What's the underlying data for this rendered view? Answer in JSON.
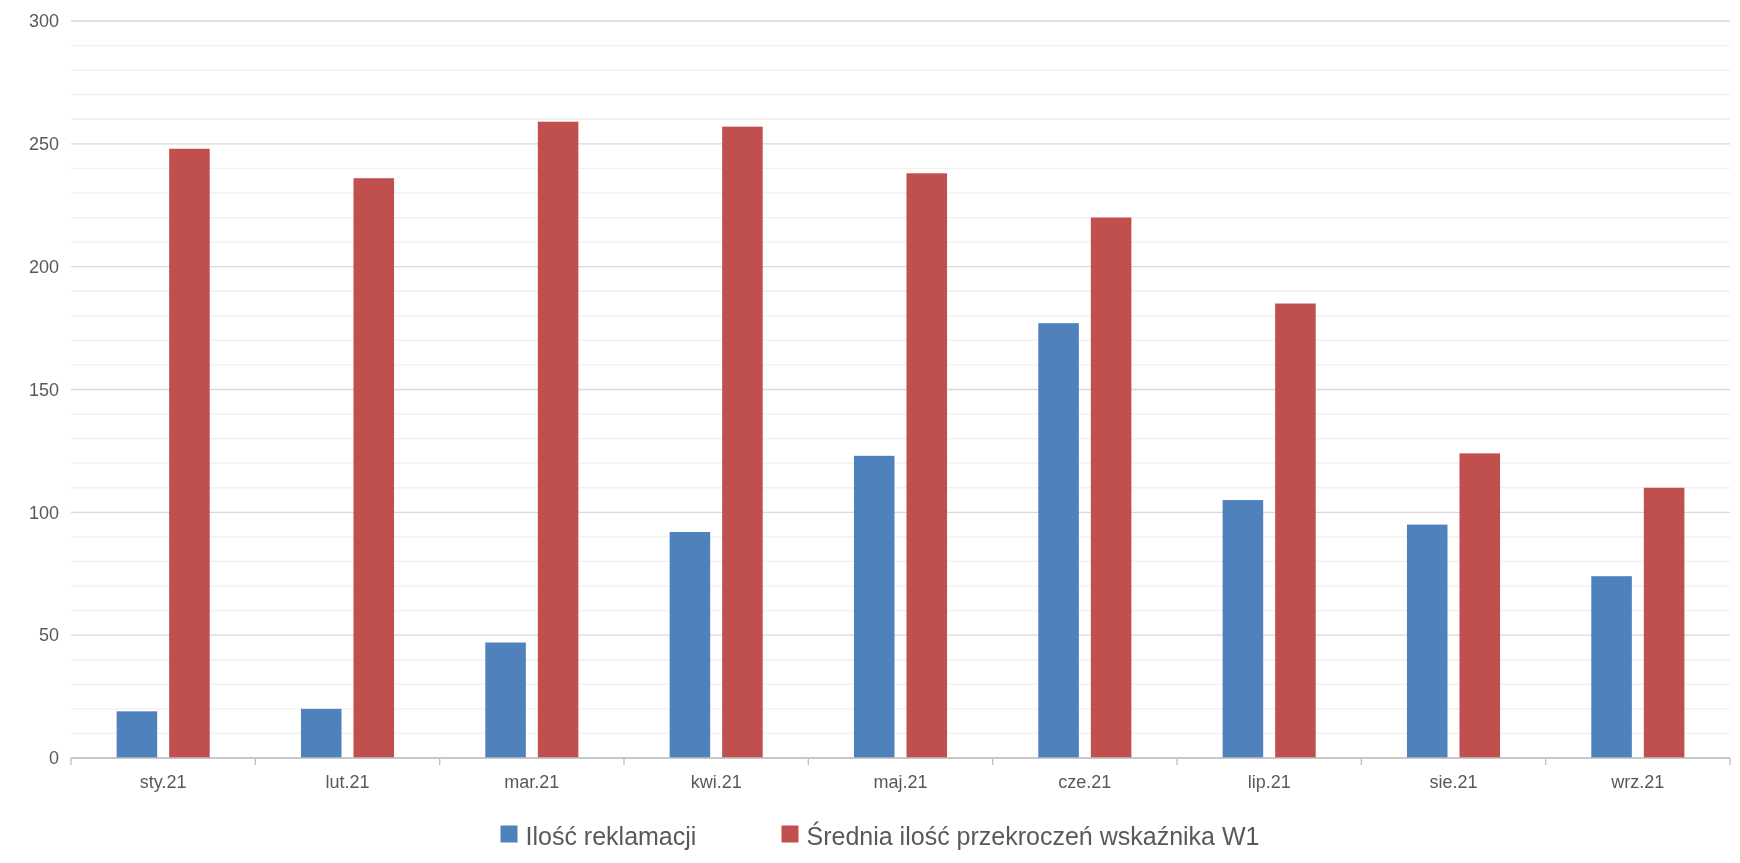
{
  "chart_data": {
    "type": "bar",
    "categories": [
      "sty.21",
      "lut.21",
      "mar.21",
      "kwi.21",
      "maj.21",
      "cze.21",
      "lip.21",
      "sie.21",
      "wrz.21"
    ],
    "series": [
      {
        "name": "Ilość reklamacji",
        "color": "#4f81bd",
        "values": [
          19,
          20,
          47,
          92,
          123,
          177,
          105,
          95,
          74
        ]
      },
      {
        "name": "Średnia ilość przekroczeń wskaźnika W1",
        "color": "#c0504d",
        "values": [
          248,
          236,
          259,
          257,
          238,
          220,
          185,
          124,
          110
        ]
      }
    ],
    "ylim": [
      0,
      300
    ],
    "yticks": [
      0,
      {
        "value": 10,
        "label": null
      },
      {
        "value": 20,
        "label": null
      },
      {
        "value": 30,
        "label": null
      },
      {
        "value": 40,
        "label": null
      },
      50,
      {
        "value": 60,
        "label": null
      },
      {
        "value": 70,
        "label": null
      },
      {
        "value": 80,
        "label": null
      },
      {
        "value": 90,
        "label": null
      },
      100,
      {
        "value": 110,
        "label": null
      },
      {
        "value": 120,
        "label": null
      },
      {
        "value": 130,
        "label": null
      },
      {
        "value": 140,
        "label": null
      },
      150,
      {
        "value": 160,
        "label": null
      },
      {
        "value": 170,
        "label": null
      },
      {
        "value": 180,
        "label": null
      },
      {
        "value": 190,
        "label": null
      },
      200,
      {
        "value": 210,
        "label": null
      },
      {
        "value": 220,
        "label": null
      },
      {
        "value": 230,
        "label": null
      },
      {
        "value": 240,
        "label": null
      },
      250,
      {
        "value": 260,
        "label": null
      },
      {
        "value": 270,
        "label": null
      },
      {
        "value": 280,
        "label": null
      },
      {
        "value": 290,
        "label": null
      },
      300
    ],
    "grid": true,
    "legend": "bottom"
  }
}
